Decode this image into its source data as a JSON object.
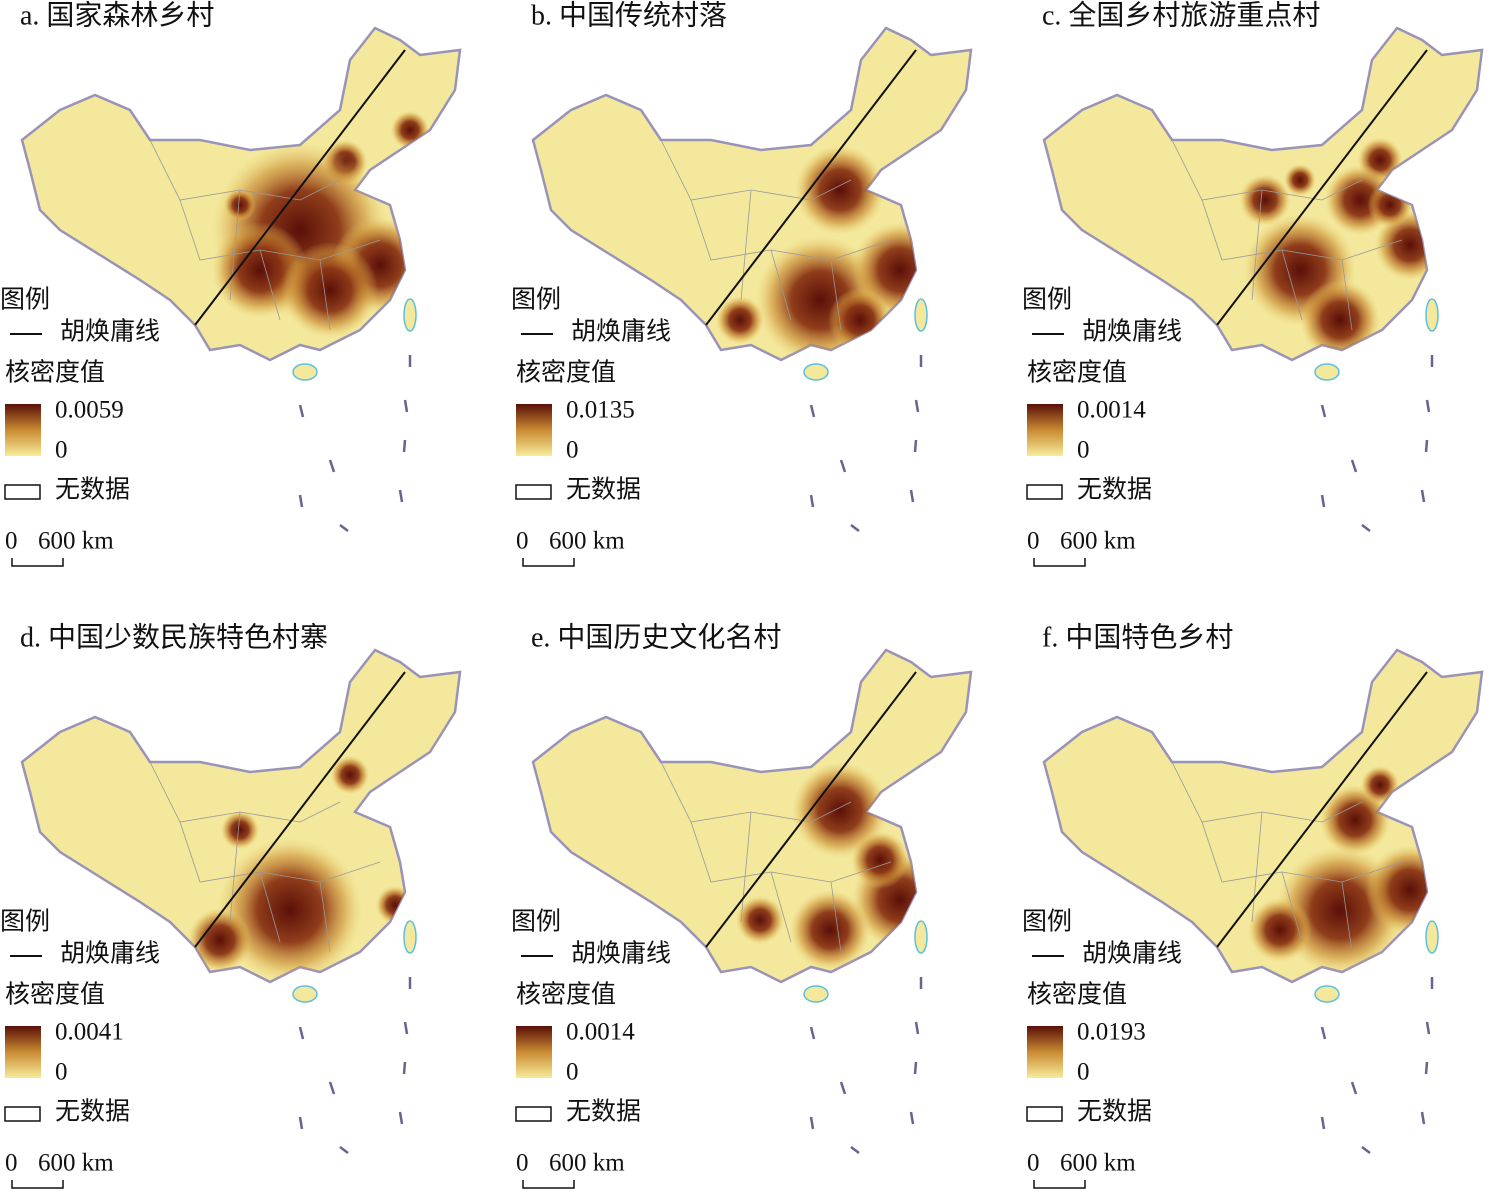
{
  "panels": [
    {
      "title": "a. 国家森林乡村",
      "legend": {
        "title": "图例",
        "line_label": "胡焕庸线",
        "density_title": "核密度值",
        "max": 0.0059,
        "min": 0,
        "no_data": "无数据"
      },
      "scale": {
        "zero": 0,
        "label": "600 km"
      }
    },
    {
      "title": "b. 中国传统村落",
      "legend": {
        "title": "图例",
        "line_label": "胡焕庸线",
        "density_title": "核密度值",
        "max": 0.0135,
        "min": 0,
        "no_data": "无数据"
      },
      "scale": {
        "zero": 0,
        "label": "600 km"
      }
    },
    {
      "title": "c. 全国乡村旅游重点村",
      "legend": {
        "title": "图例",
        "line_label": "胡焕庸线",
        "density_title": "核密度值",
        "max": 0.0014,
        "min": 0,
        "no_data": "无数据"
      },
      "scale": {
        "zero": 0,
        "label": "600 km"
      }
    },
    {
      "title": "d. 中国少数民族特色村寨",
      "legend": {
        "title": "图例",
        "line_label": "胡焕庸线",
        "density_title": "核密度值",
        "max": 0.0041,
        "min": 0,
        "no_data": "无数据"
      },
      "scale": {
        "zero": 0,
        "label": "600 km"
      }
    },
    {
      "title": "e. 中国历史文化名村",
      "legend": {
        "title": "图例",
        "line_label": "胡焕庸线",
        "density_title": "核密度值",
        "max": 0.0014,
        "min": 0,
        "no_data": "无数据"
      },
      "scale": {
        "zero": 0,
        "label": "600 km"
      }
    },
    {
      "title": "f. 中国特色乡村",
      "legend": {
        "title": "图例",
        "line_label": "胡焕庸线",
        "density_title": "核密度值",
        "max": 0.0193,
        "min": 0,
        "no_data": "无数据"
      },
      "scale": {
        "zero": 0,
        "label": "600 km"
      }
    }
  ]
}
